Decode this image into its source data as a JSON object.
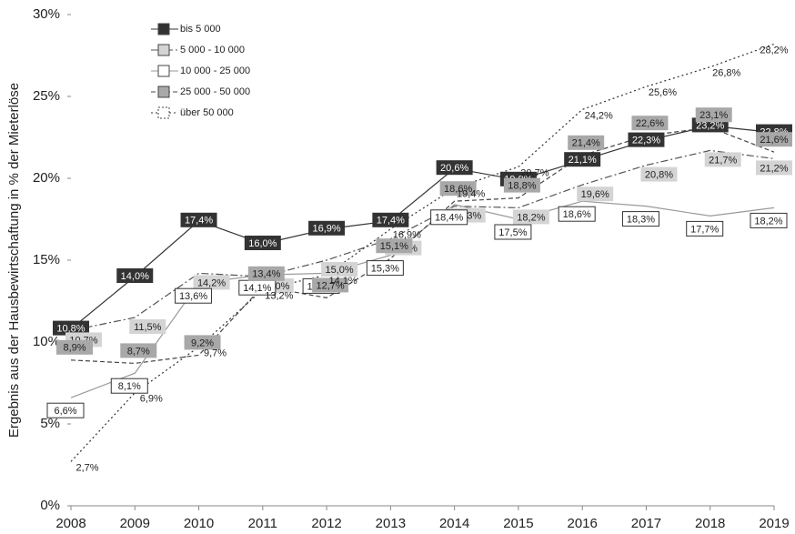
{
  "chart_data": {
    "type": "line",
    "y_axis_label": "Ergebnis aus der Hausbewirtschaftung in % der Mieterlöse",
    "categories": [
      "2008",
      "2009",
      "2010",
      "2011",
      "2012",
      "2013",
      "2014",
      "2015",
      "2016",
      "2017",
      "2018",
      "2019"
    ],
    "ylim": [
      0,
      30
    ],
    "yticks": [
      {
        "value": 0,
        "label": "0%"
      },
      {
        "value": 5,
        "label": "5%"
      },
      {
        "value": 10,
        "label": "10%"
      },
      {
        "value": 15,
        "label": "15%"
      },
      {
        "value": 20,
        "label": "20%"
      },
      {
        "value": 25,
        "label": "25%"
      },
      {
        "value": 30,
        "label": "30%"
      }
    ],
    "legend": "top-left",
    "series": [
      {
        "name": "bis 5 000",
        "color": "#333333",
        "fill": "#333333",
        "values": [
          10.8,
          14.0,
          17.4,
          16.0,
          16.9,
          17.4,
          20.6,
          19.9,
          21.1,
          22.3,
          23.2,
          22.8
        ],
        "value_labels": [
          "10,8%",
          "14,0%",
          "17,4%",
          "16,0%",
          "16,9%",
          "17,4%",
          "20,6%",
          "19,9%",
          "21,1%",
          "22,3%",
          "23,2%",
          "22,8%"
        ]
      },
      {
        "name": "5 000 - 10 000",
        "color": "#555555",
        "fill": "#d4d4d4",
        "values": [
          10.7,
          11.5,
          14.2,
          14.0,
          15.0,
          16.3,
          18.3,
          18.2,
          19.6,
          20.8,
          21.7,
          21.2
        ],
        "value_labels": [
          "10,7%",
          "11,5%",
          "14,2%",
          "14,0%",
          "15,0%",
          "16,3%",
          "18,3%",
          "18,2%",
          "19,6%",
          "20,8%",
          "21,7%",
          "21,2%"
        ]
      },
      {
        "name": "10 000 - 25 000",
        "color": "#999999",
        "fill": "#ffffff",
        "values": [
          6.6,
          8.1,
          13.6,
          14.1,
          14.2,
          15.3,
          18.4,
          17.5,
          18.6,
          18.3,
          17.7,
          18.2
        ],
        "value_labels": [
          "6,6%",
          "8,1%",
          "13,6%",
          "14,1%",
          "14,2%",
          "15,3%",
          "18,4%",
          "17,5%",
          "18,6%",
          "18,3%",
          "17,7%",
          "18,2%"
        ]
      },
      {
        "name": "25 000 - 50 000",
        "color": "#444444",
        "fill": "#a8a8a8",
        "values": [
          8.9,
          8.7,
          9.2,
          13.4,
          12.7,
          15.1,
          18.6,
          18.8,
          21.4,
          22.6,
          23.1,
          21.6
        ],
        "value_labels": [
          "8,9%",
          "8,7%",
          "9,2%",
          "13,4%",
          "12,7%",
          "15,1%",
          "18,6%",
          "18,8%",
          "21,4%",
          "22,6%",
          "23,1%",
          "21,6%"
        ]
      },
      {
        "name": "über 50 000",
        "color": "#333333",
        "fill": "none",
        "values": [
          2.7,
          6.9,
          9.7,
          13.2,
          14.1,
          16.9,
          19.4,
          20.7,
          24.2,
          25.6,
          26.8,
          28.2
        ],
        "value_labels": [
          "2,7%",
          "6,9%",
          "9,7%",
          "13,2%",
          "14,1%",
          "16,9%",
          "19,4%",
          "20,7%",
          "24,2%",
          "25,6%",
          "26,8%",
          "28,2%"
        ]
      }
    ]
  }
}
